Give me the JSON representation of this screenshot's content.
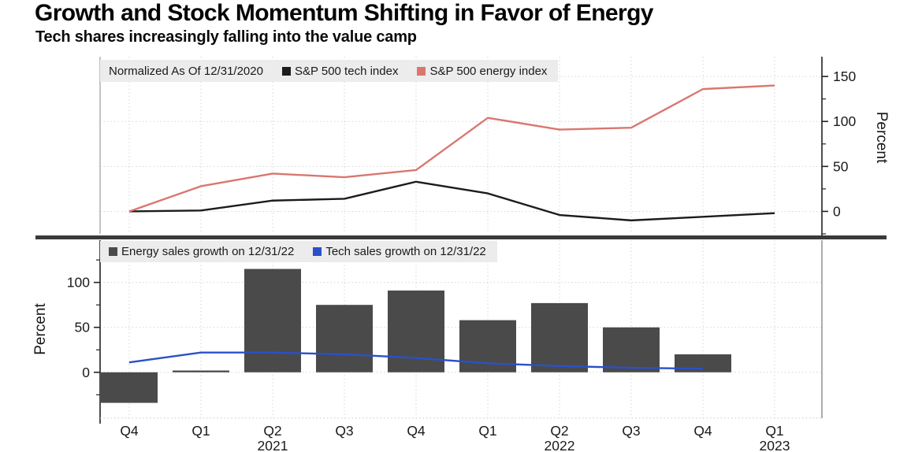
{
  "page": {
    "title": "Growth and Stock Momentum Shifting in Favor of Energy",
    "subtitle": "Tech shares increasingly falling into the value camp"
  },
  "colors": {
    "tech_index": "#1c1c1c",
    "energy_index": "#d9776f",
    "energy_bars": "#4a4a4a",
    "tech_sales": "#2b50c8",
    "legend_bg": "#ececec",
    "grid": "#d6d6d6",
    "axis": "#222222",
    "divider": "#3a3a3a"
  },
  "chart_data": [
    {
      "type": "line",
      "panel": "top",
      "note": "Normalized As Of 12/31/2020",
      "categories": [
        "Q4",
        "Q1",
        "Q2",
        "Q3",
        "Q4",
        "Q1",
        "Q2",
        "Q3",
        "Q4",
        "Q1"
      ],
      "series": [
        {
          "name": "S&P 500 tech index",
          "type": "line",
          "color_key": "tech_index",
          "values": [
            0,
            1,
            12,
            14,
            33,
            20,
            -4,
            -10,
            -6,
            -2
          ]
        },
        {
          "name": "S&P 500 energy index",
          "type": "line",
          "color_key": "energy_index",
          "values": [
            0,
            28,
            42,
            38,
            46,
            104,
            91,
            93,
            136,
            140
          ]
        }
      ],
      "ylabel": "Percent",
      "yticks": [
        0,
        50,
        100,
        150
      ],
      "ylim": [
        -25,
        172
      ],
      "axis_side": "right",
      "show_x_labels": false,
      "grid": true,
      "legend_position": "top-left"
    },
    {
      "type": "bar",
      "panel": "bottom",
      "categories": [
        "Q4",
        "Q1",
        "Q2",
        "Q3",
        "Q4",
        "Q1",
        "Q2",
        "Q3",
        "Q4",
        "Q1"
      ],
      "years": [
        {
          "index": 2,
          "label": "2021"
        },
        {
          "index": 6,
          "label": "2022"
        },
        {
          "index": 9,
          "label": "2023"
        }
      ],
      "series": [
        {
          "name": "Energy sales growth on 12/31/22",
          "type": "bar",
          "color_key": "energy_bars",
          "values": [
            -34,
            2,
            115,
            75,
            91,
            58,
            77,
            50,
            20,
            null
          ]
        },
        {
          "name": "Tech sales growth on 12/31/22",
          "type": "line",
          "color_key": "tech_sales",
          "values": [
            11,
            22,
            22,
            20,
            16,
            10,
            7,
            5,
            4,
            null
          ]
        }
      ],
      "ylabel": "Percent",
      "yticks": [
        0,
        50,
        100
      ],
      "ylim": [
        -51,
        147
      ],
      "axis_side": "left",
      "show_x_labels": true,
      "grid": true,
      "legend_position": "top-left"
    }
  ]
}
